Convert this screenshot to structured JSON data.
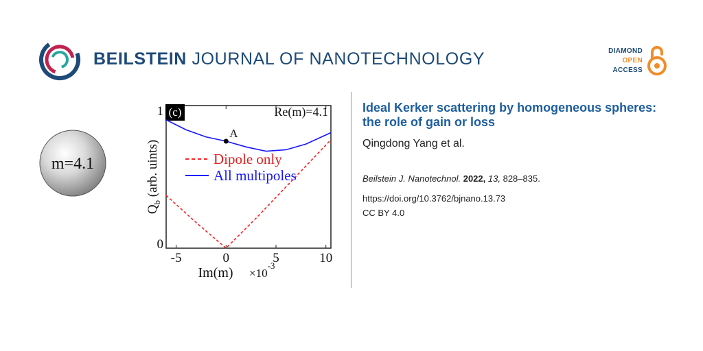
{
  "header": {
    "journal_bold": "BEILSTEIN",
    "journal_rest": "JOURNAL OF NANOTECHNOLOGY",
    "badge_line1": "DIAMOND",
    "badge_line2": "OPEN",
    "badge_line3": "ACCESS",
    "colors": {
      "navy": "#1d4a78",
      "orange": "#f28c28",
      "title_blue": "#1d5e9e"
    }
  },
  "figure": {
    "sphere_label": "m=4.1",
    "panel_label": "(c)",
    "annotation": "Re(m)=4.1",
    "point_label": "A",
    "ylabel": "Q",
    "ylabel_sub": "b",
    "ylabel_rest": " (arb. uints)",
    "xlabel": "Im(m)",
    "x_multiplier": "×10",
    "x_multiplier_exp": "-3",
    "y_ticks": [
      "1",
      "0"
    ],
    "x_ticks": [
      "-5",
      "0",
      "5",
      "10"
    ],
    "legend": [
      {
        "label": "Dipole only",
        "color": "#ff2020",
        "style": "dashed"
      },
      {
        "label": "All multipoles",
        "color": "#1515ff",
        "style": "solid"
      }
    ]
  },
  "chart_data": {
    "type": "line",
    "xlabel": "Im(m) ×10^-3",
    "ylabel": "Q_b (arb. uints)",
    "xlim": [
      -6,
      10.5
    ],
    "ylim": [
      0,
      1
    ],
    "annotations": [
      "(c)",
      "Re(m)=4.1",
      "A"
    ],
    "point_A": {
      "x": 0,
      "y": 0.75
    },
    "series": [
      {
        "name": "Dipole only",
        "x": [
          -6,
          -3,
          0,
          3,
          6,
          10.5
        ],
        "values": [
          0.37,
          0.18,
          0,
          0.21,
          0.43,
          0.76
        ]
      },
      {
        "name": "All multipoles",
        "x": [
          -6,
          -4,
          -2,
          0,
          2,
          4,
          6,
          8,
          10.5
        ],
        "values": [
          0.9,
          0.83,
          0.78,
          0.75,
          0.71,
          0.68,
          0.69,
          0.73,
          0.81
        ]
      }
    ]
  },
  "article": {
    "title": "Ideal Kerker scattering by homogeneous spheres: the role of gain or loss",
    "authors": "Qingdong Yang et al.",
    "journal_abbrev": "Beilstein J. Nanotechnol.",
    "year": "2022,",
    "volume": "13,",
    "pages": "828–835.",
    "doi": "https://doi.org/10.3762/bjnano.13.73",
    "license": "CC BY 4.0"
  }
}
